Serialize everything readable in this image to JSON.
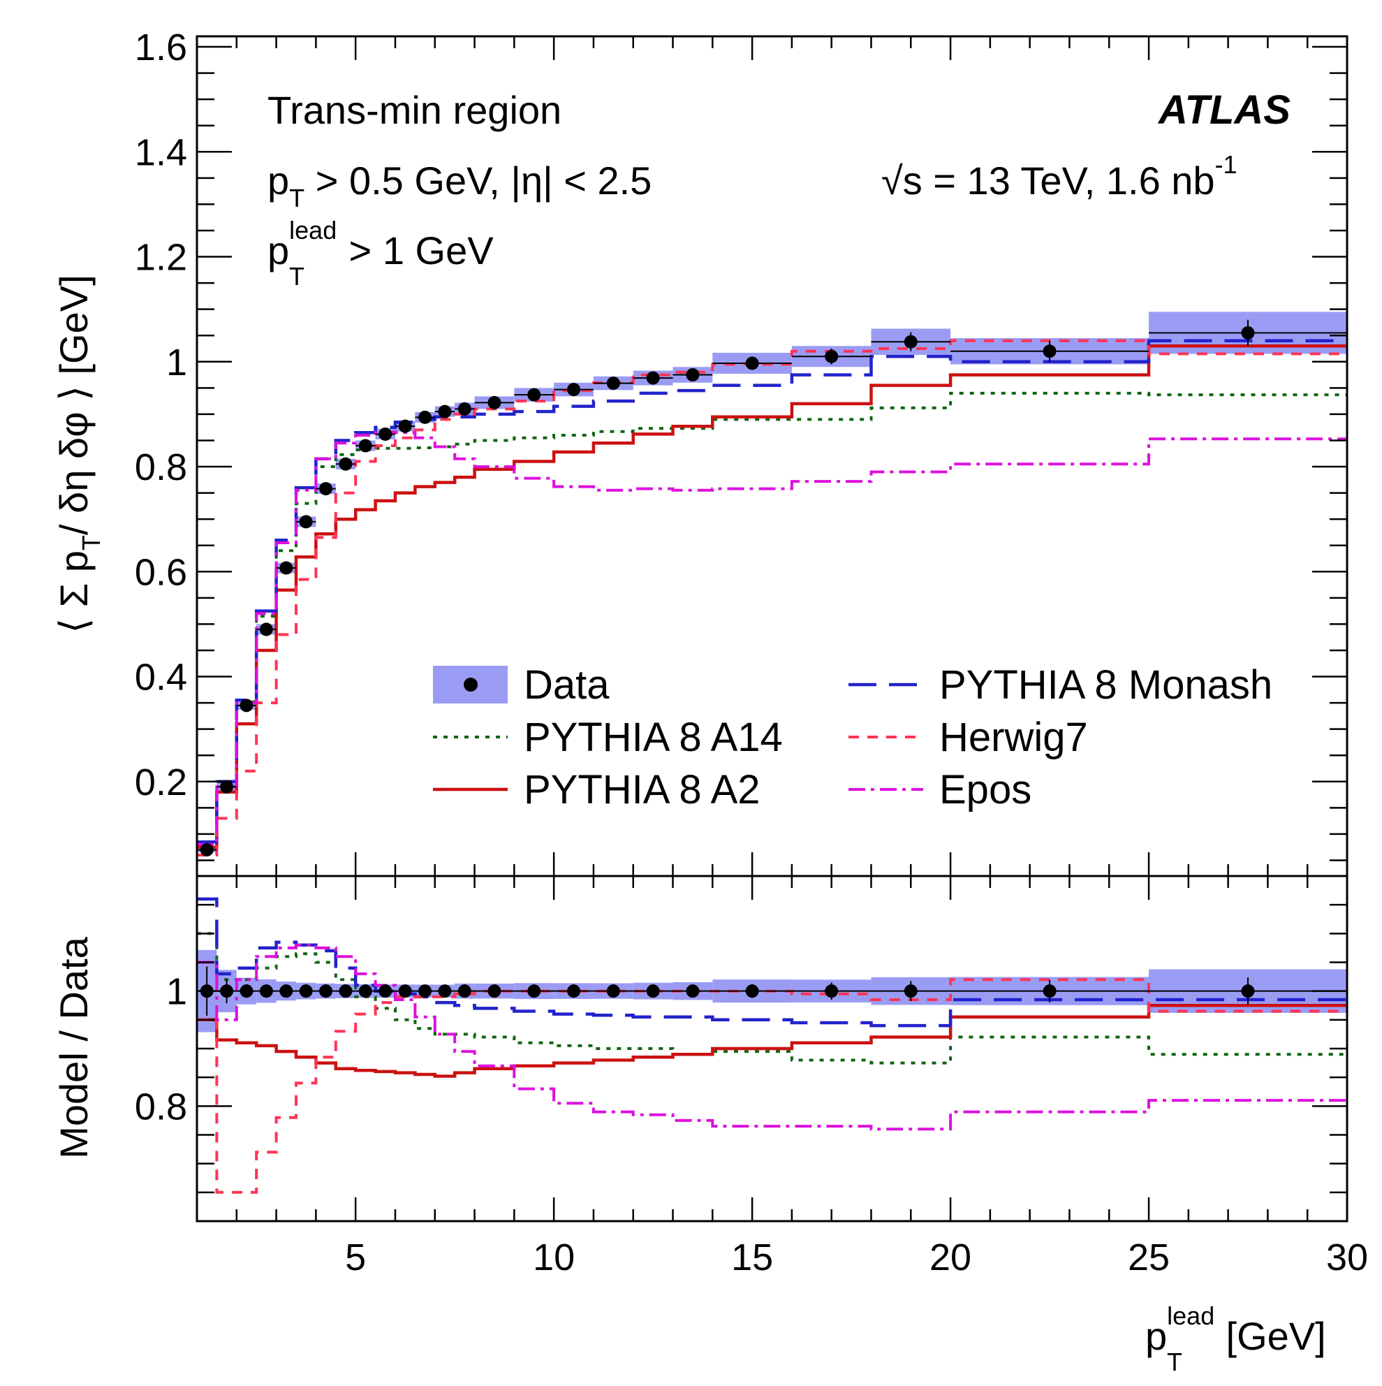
{
  "chart_data": {
    "type": "line",
    "title": "",
    "experiment": "ATLAS",
    "annotations": {
      "region": "Trans-min region",
      "cut1_p": "p",
      "cut1_sub": "T",
      "cut1_rest": " > 0.5 GeV, |η| < 2.5",
      "cut2_p": "p",
      "cut2_sup": "lead",
      "cut2_sub": "T",
      "cut2_rest": " > 1 GeV",
      "energy_pre": "√s = 13 TeV, 1.6 nb",
      "energy_sup": "-1"
    },
    "xlabel": {
      "p": "p",
      "sup": "lead",
      "sub": "T",
      "rest": " [GeV]"
    },
    "ylabel_top": "⟨ Σ pᵀ/ δη δφ ⟩ [GeV]",
    "ylabel_top_parts": {
      "pre": "⟨ Σ p",
      "sub": "T",
      "post": "/ δη δφ ⟩ [GeV]"
    },
    "ylabel_bottom": "Model / Data",
    "xlim": [
      1,
      30
    ],
    "ylim_top": [
      0.02,
      1.62
    ],
    "ylim_bottom": [
      0.6,
      1.2
    ],
    "x_ticks": [
      5,
      10,
      15,
      20,
      25,
      30
    ],
    "x_tick_labels": [
      "5",
      "10",
      "15",
      "20",
      "25",
      "30"
    ],
    "y_ticks_top": [
      0.2,
      0.4,
      0.6,
      0.8,
      1.0,
      1.2,
      1.4,
      1.6
    ],
    "y_tick_labels_top": [
      "0.2",
      "0.4",
      "0.6",
      "0.8",
      "1",
      "1.2",
      "1.4",
      "1.6"
    ],
    "y_ticks_bottom": [
      0.8,
      1.0
    ],
    "y_tick_labels_bottom": [
      "0.8",
      "1"
    ],
    "bin_edges": [
      1,
      1.5,
      2,
      2.5,
      3,
      3.5,
      4,
      4.5,
      5,
      5.5,
      6,
      6.5,
      7,
      7.5,
      8,
      9,
      10,
      11,
      12,
      13,
      14,
      16,
      18,
      20,
      25,
      30
    ],
    "data": {
      "name": "Data",
      "values": [
        0.07,
        0.19,
        0.345,
        0.49,
        0.607,
        0.695,
        0.758,
        0.805,
        0.84,
        0.862,
        0.877,
        0.894,
        0.905,
        0.91,
        0.922,
        0.937,
        0.947,
        0.959,
        0.969,
        0.975,
        0.997,
        1.01,
        1.038,
        1.02,
        1.055
      ],
      "syst_band": [
        0.005,
        0.007,
        0.008,
        0.01,
        0.01,
        0.01,
        0.01,
        0.01,
        0.01,
        0.01,
        0.01,
        0.01,
        0.01,
        0.012,
        0.012,
        0.013,
        0.013,
        0.013,
        0.014,
        0.015,
        0.02,
        0.02,
        0.025,
        0.025,
        0.04
      ],
      "stat_err": [
        0.003,
        0.004,
        0.004,
        0.004,
        0.004,
        0.004,
        0.004,
        0.004,
        0.005,
        0.005,
        0.005,
        0.005,
        0.005,
        0.006,
        0.006,
        0.007,
        0.008,
        0.009,
        0.01,
        0.01,
        0.012,
        0.015,
        0.018,
        0.02,
        0.025
      ],
      "ratio_values": [
        1,
        1,
        1,
        1,
        1,
        1,
        1,
        1,
        1,
        1,
        1,
        1,
        1,
        1,
        1,
        1,
        1,
        1,
        1,
        1,
        1,
        1,
        1,
        1,
        1
      ]
    },
    "series": [
      {
        "name": "PYTHIA 8 A14",
        "color": "#116611",
        "dash": "6,9",
        "width": 4,
        "values": [
          0.077,
          0.2,
          0.352,
          0.515,
          0.64,
          0.73,
          0.8,
          0.823,
          0.832,
          0.835,
          0.835,
          0.836,
          0.838,
          0.843,
          0.85,
          0.855,
          0.86,
          0.867,
          0.873,
          0.873,
          0.89,
          0.89,
          0.912,
          0.94,
          0.937
        ],
        "ratio": [
          1.1,
          1.02,
          1.02,
          1.04,
          1.06,
          1.065,
          1.05,
          1.02,
          0.99,
          0.97,
          0.95,
          0.935,
          0.925,
          0.925,
          0.92,
          0.91,
          0.905,
          0.9,
          0.9,
          0.89,
          0.895,
          0.88,
          0.875,
          0.92,
          0.89
        ]
      },
      {
        "name": "PYTHIA 8 A2",
        "color": "#cc1111",
        "dash": "",
        "width": 4.5,
        "values": [
          0.075,
          0.18,
          0.31,
          0.45,
          0.565,
          0.628,
          0.672,
          0.7,
          0.718,
          0.735,
          0.75,
          0.762,
          0.77,
          0.78,
          0.795,
          0.81,
          0.828,
          0.845,
          0.862,
          0.877,
          0.895,
          0.92,
          0.955,
          0.975,
          1.03
        ],
        "ratio": [
          0.95,
          0.915,
          0.91,
          0.905,
          0.895,
          0.885,
          0.875,
          0.865,
          0.862,
          0.86,
          0.858,
          0.855,
          0.852,
          0.858,
          0.865,
          0.87,
          0.875,
          0.88,
          0.885,
          0.89,
          0.9,
          0.91,
          0.92,
          0.955,
          0.975
        ]
      },
      {
        "name": "PYTHIA 8 Monash",
        "color": "#2222cc",
        "dash": "40,18",
        "width": 4.5,
        "values": [
          0.085,
          0.2,
          0.355,
          0.525,
          0.66,
          0.76,
          0.815,
          0.85,
          0.865,
          0.875,
          0.885,
          0.89,
          0.895,
          0.895,
          0.9,
          0.905,
          0.915,
          0.925,
          0.94,
          0.945,
          0.955,
          0.975,
          1.01,
          1.0,
          1.04
        ],
        "ratio": [
          1.16,
          1.03,
          1.04,
          1.075,
          1.085,
          1.08,
          1.07,
          1.04,
          1.01,
          1.0,
          0.995,
          0.99,
          0.98,
          0.975,
          0.97,
          0.965,
          0.96,
          0.958,
          0.955,
          0.955,
          0.95,
          0.945,
          0.94,
          0.985,
          0.985
        ]
      },
      {
        "name": "Herwig7",
        "color": "#ff3355",
        "dash": "15,12",
        "width": 4,
        "values": [
          0.06,
          0.13,
          0.22,
          0.35,
          0.48,
          0.585,
          0.665,
          0.75,
          0.81,
          0.84,
          0.855,
          0.87,
          0.89,
          0.9,
          0.91,
          0.925,
          0.945,
          0.96,
          0.975,
          0.98,
          0.995,
          1.02,
          1.025,
          1.04,
          1.015
        ],
        "ratio": [
          0.95,
          0.65,
          0.65,
          0.72,
          0.78,
          0.84,
          0.885,
          0.93,
          0.96,
          0.98,
          0.99,
          0.99,
          0.99,
          0.995,
          1.0,
          1.0,
          1.0,
          1.0,
          1.0,
          1.0,
          1.0,
          0.995,
          0.985,
          1.02,
          0.965
        ]
      },
      {
        "name": "Epos",
        "color": "#dd11dd",
        "dash": "24,8,5,8",
        "width": 4,
        "values": [
          0.08,
          0.19,
          0.35,
          0.52,
          0.655,
          0.755,
          0.815,
          0.845,
          0.86,
          0.866,
          0.865,
          0.855,
          0.838,
          0.815,
          0.8,
          0.778,
          0.762,
          0.755,
          0.758,
          0.755,
          0.758,
          0.772,
          0.79,
          0.805,
          0.853
        ],
        "ratio": [
          1.05,
          0.95,
          1.02,
          1.06,
          1.075,
          1.08,
          1.075,
          1.06,
          1.03,
          1.01,
          0.985,
          0.955,
          0.925,
          0.895,
          0.87,
          0.83,
          0.805,
          0.79,
          0.785,
          0.775,
          0.765,
          0.765,
          0.76,
          0.79,
          0.81
        ]
      }
    ],
    "legend": {
      "location": "center-right",
      "entries": [
        "Data",
        "PYTHIA 8 A14",
        "PYTHIA 8 A2",
        "PYTHIA 8 Monash",
        "Herwig7",
        "Epos"
      ]
    },
    "colors": {
      "band": "#9a9cf4",
      "marker": "#000000",
      "axis": "#000000"
    },
    "grid": false
  }
}
